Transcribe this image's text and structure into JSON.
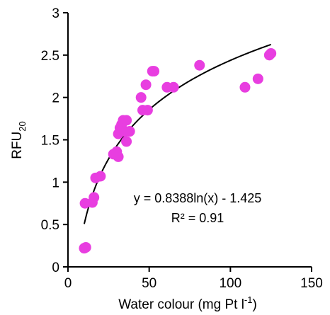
{
  "chart_data": {
    "type": "scatter",
    "title": "",
    "xlabel": "Water colour (mg Pt l",
    "xlabel_sup": "-1",
    "xlabel_end": ")",
    "ylabel": "RFU",
    "ylabel_sub": "20",
    "xlim": [
      0,
      150
    ],
    "ylim": [
      0,
      3
    ],
    "xticks": [
      0,
      50,
      100,
      150
    ],
    "yticks": [
      0,
      0.5,
      1,
      1.5,
      2,
      2.5,
      3
    ],
    "xtick_labels": [
      "0",
      "50",
      "100",
      "150"
    ],
    "ytick_labels": [
      "0",
      "0.5",
      "1",
      "1.5",
      "2",
      "2.5",
      "3"
    ],
    "grid": false,
    "marker_color": "#e83ee0",
    "trendline_color": "#000000",
    "trendline": {
      "type": "log",
      "a": 0.8388,
      "b": -1.425,
      "x_range": [
        10,
        125
      ]
    },
    "equation": "y = 0.8388ln(x) - 1.425",
    "r_squared": "R² = 0.91",
    "points": [
      {
        "x": 10,
        "y": 0.22
      },
      {
        "x": 11,
        "y": 0.23
      },
      {
        "x": 10.5,
        "y": 0.75
      },
      {
        "x": 15,
        "y": 0.76
      },
      {
        "x": 16,
        "y": 0.82
      },
      {
        "x": 17,
        "y": 1.05
      },
      {
        "x": 20,
        "y": 1.07
      },
      {
        "x": 28,
        "y": 1.33
      },
      {
        "x": 30,
        "y": 1.36
      },
      {
        "x": 31,
        "y": 1.3
      },
      {
        "x": 31,
        "y": 1.57
      },
      {
        "x": 32,
        "y": 1.64
      },
      {
        "x": 33,
        "y": 1.68
      },
      {
        "x": 34,
        "y": 1.73
      },
      {
        "x": 35,
        "y": 1.6
      },
      {
        "x": 36,
        "y": 1.73
      },
      {
        "x": 36,
        "y": 1.48
      },
      {
        "x": 38,
        "y": 1.6
      },
      {
        "x": 45,
        "y": 2.0
      },
      {
        "x": 46,
        "y": 1.85
      },
      {
        "x": 48,
        "y": 2.15
      },
      {
        "x": 49,
        "y": 1.85
      },
      {
        "x": 52,
        "y": 2.31
      },
      {
        "x": 53,
        "y": 2.31
      },
      {
        "x": 61,
        "y": 2.12
      },
      {
        "x": 65,
        "y": 2.12
      },
      {
        "x": 81,
        "y": 2.38
      },
      {
        "x": 109,
        "y": 2.12
      },
      {
        "x": 117,
        "y": 2.22
      },
      {
        "x": 124,
        "y": 2.5
      },
      {
        "x": 125,
        "y": 2.52
      }
    ]
  }
}
